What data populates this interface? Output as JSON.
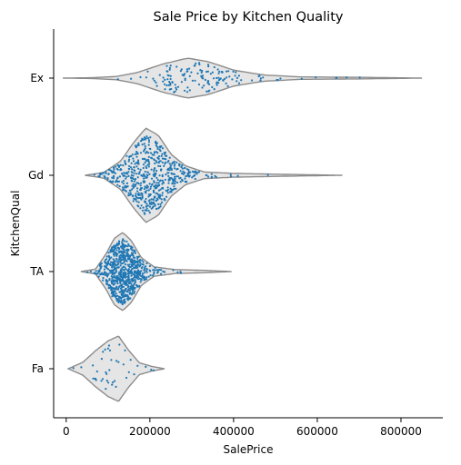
{
  "chart_data": {
    "type": "violin",
    "title": "Sale Price by Kitchen Quality",
    "xlabel": "SalePrice",
    "ylabel": "KitchenQual",
    "xlim": [
      -30000,
      900000
    ],
    "x_ticks": [
      0,
      200000,
      400000,
      600000,
      800000
    ],
    "x_tick_labels": [
      "0",
      "200000",
      "400000",
      "600000",
      "800000"
    ],
    "categories": [
      "Ex",
      "Gd",
      "TA",
      "Fa"
    ],
    "violin_color": "#e5e5e5",
    "violin_edge_color": "#8c8c8c",
    "point_color": "#1f77b4",
    "violins": [
      {
        "category": "Ex",
        "min": -8000,
        "max": 850000,
        "profile": [
          [
            -8000,
            0.0
          ],
          [
            60000,
            0.02
          ],
          [
            120000,
            0.08
          ],
          [
            170000,
            0.28
          ],
          [
            230000,
            0.7
          ],
          [
            290000,
            1.0
          ],
          [
            340000,
            0.82
          ],
          [
            400000,
            0.4
          ],
          [
            470000,
            0.16
          ],
          [
            560000,
            0.06
          ],
          [
            700000,
            0.04
          ],
          [
            850000,
            0.0
          ]
        ],
        "samples": 150,
        "center": 315000,
        "spread": 85000
      },
      {
        "category": "Gd",
        "min": 45000,
        "max": 660000,
        "profile": [
          [
            45000,
            0.0
          ],
          [
            90000,
            0.06
          ],
          [
            130000,
            0.3
          ],
          [
            160000,
            0.68
          ],
          [
            190000,
            1.0
          ],
          [
            220000,
            0.85
          ],
          [
            250000,
            0.45
          ],
          [
            285000,
            0.2
          ],
          [
            330000,
            0.07
          ],
          [
            400000,
            0.04
          ],
          [
            520000,
            0.02
          ],
          [
            660000,
            0.0
          ]
        ],
        "samples": 590,
        "center": 200000,
        "spread": 48000
      },
      {
        "category": "TA",
        "min": 35000,
        "max": 395000,
        "profile": [
          [
            35000,
            0.0
          ],
          [
            70000,
            0.06
          ],
          [
            95000,
            0.45
          ],
          [
            115000,
            0.85
          ],
          [
            135000,
            1.0
          ],
          [
            155000,
            0.8
          ],
          [
            180000,
            0.35
          ],
          [
            210000,
            0.12
          ],
          [
            260000,
            0.05
          ],
          [
            330000,
            0.03
          ],
          [
            395000,
            0.0
          ]
        ],
        "samples": 740,
        "center": 134000,
        "spread": 27000
      },
      {
        "category": "Fa",
        "min": 5000,
        "max": 235000,
        "profile": [
          [
            5000,
            0.0
          ],
          [
            40000,
            0.2
          ],
          [
            70000,
            0.55
          ],
          [
            100000,
            0.85
          ],
          [
            125000,
            1.0
          ],
          [
            150000,
            0.55
          ],
          [
            175000,
            0.18
          ],
          [
            205000,
            0.07
          ],
          [
            235000,
            0.0
          ]
        ],
        "samples": 40,
        "center": 110000,
        "spread": 35000
      }
    ]
  }
}
